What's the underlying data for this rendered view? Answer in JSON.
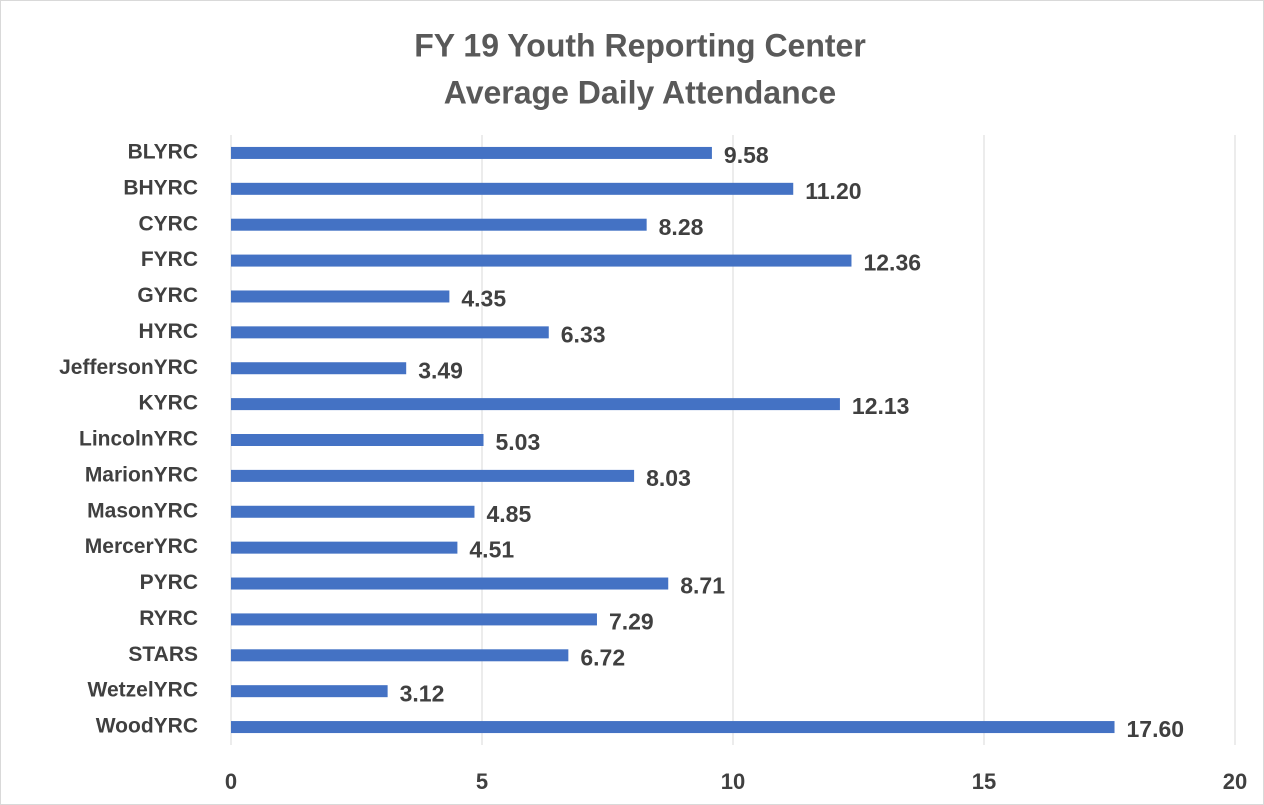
{
  "chart_data": {
    "type": "bar",
    "orientation": "horizontal",
    "title": [
      "FY 19 Youth Reporting Center",
      "Average Daily Attendance"
    ],
    "categories": [
      "BLYRC",
      "BHYRC",
      "CYRC",
      "FYRC",
      "GYRC",
      "HYRC",
      "JeffersonYRC",
      "KYRC",
      "LincolnYRC",
      "MarionYRC",
      "MasonYRC",
      "MercerYRC",
      "PYRC",
      "RYRC",
      "STARS",
      "WetzelYRC",
      "WoodYRC"
    ],
    "values": [
      9.58,
      11.2,
      8.28,
      12.36,
      4.35,
      6.33,
      3.49,
      12.13,
      5.03,
      8.03,
      4.85,
      4.51,
      8.71,
      7.29,
      6.72,
      3.12,
      17.6
    ],
    "value_labels": [
      "9.58",
      "11.20",
      "8.28",
      "12.36",
      "4.35",
      "6.33",
      "3.49",
      "12.13",
      "5.03",
      "8.03",
      "4.85",
      "4.51",
      "8.71",
      "7.29",
      "6.72",
      "3.12",
      "17.60"
    ],
    "color": "#4472c4",
    "xlim": [
      0,
      20
    ],
    "xticks": [
      0,
      5,
      10,
      15,
      20
    ],
    "grid": true
  }
}
